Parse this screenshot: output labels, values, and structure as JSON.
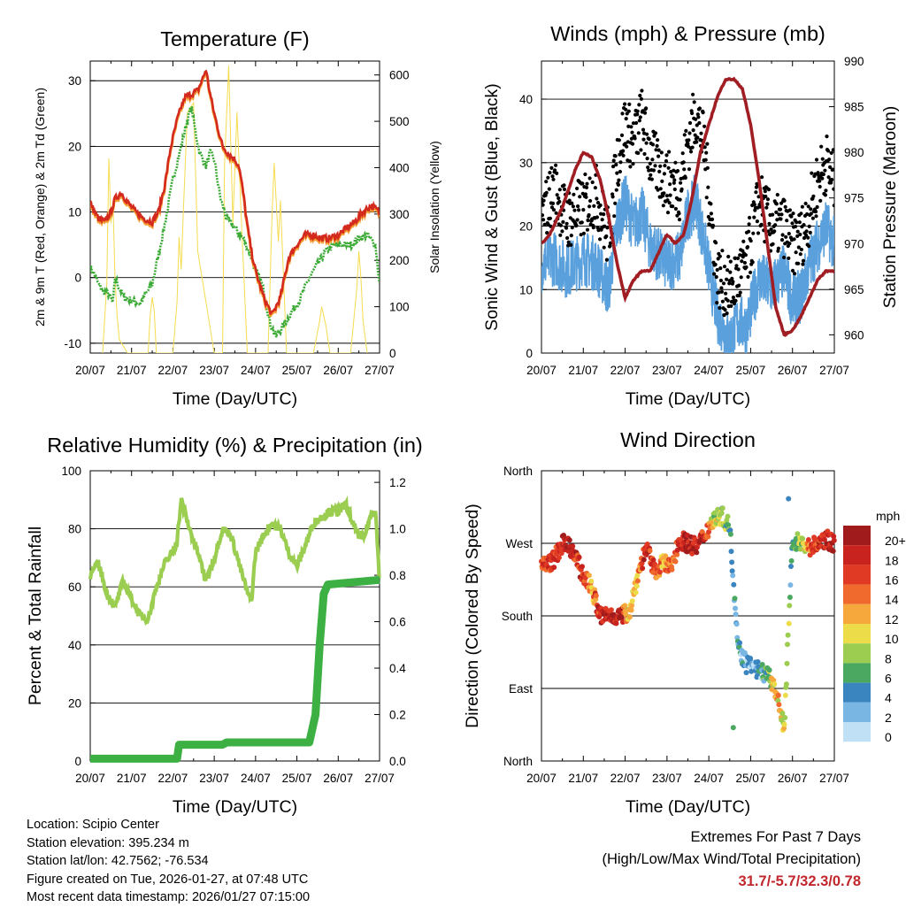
{
  "footer": {
    "location": "Location: Scipio Center",
    "elevation": "Station elevation: 395.234 m",
    "latlon": "Station lat/lon: 42.7562; -76.534",
    "created": "Figure created on Tue, 2026-01-27, at 07:48 UTC",
    "latest": "Most recent data timestamp: 2026/01/27 07:15:00"
  },
  "extremes": {
    "title": "Extremes For Past 7 Days",
    "subtitle": "(High/Low/Max Wind/Total Precipitation)",
    "values": "31.7/-5.7/32.3/0.78"
  },
  "colors": {
    "temp_2m": "#d42a1e",
    "temp_9m": "#f5a033",
    "dewpoint": "#3aaa35",
    "solar": "#f5dc50",
    "wind": "#5aa0dc",
    "gust": "#000000",
    "pressure": "#a01e23",
    "rh": "#9acd50",
    "precip": "#3cb043"
  },
  "chart_data": [
    {
      "type": "line",
      "title": "Temperature (F)",
      "xlabel": "Time (Day/UTC)",
      "ylabel": "2m & 9m T (Red, Orange) & 2m Td (Green)",
      "y2label": "Solar Insolation (Yellow)",
      "x_ticks": [
        "20/07",
        "21/07",
        "22/07",
        "23/07",
        "24/07",
        "25/07",
        "26/07",
        "27/07"
      ],
      "ylim": [
        -11.5,
        33
      ],
      "y_ticks": [
        -10,
        0,
        10,
        20,
        30
      ],
      "y2lim": [
        0,
        630
      ],
      "y2_ticks": [
        0,
        100,
        200,
        300,
        400,
        500,
        600
      ],
      "series": [
        {
          "name": "2m T",
          "color": "#d42a1e",
          "x": [
            0,
            0.1,
            0.2,
            0.35,
            0.5,
            0.6,
            0.75,
            0.9,
            1.1,
            1.3,
            1.5,
            1.65,
            1.8,
            1.95,
            2.1,
            2.2,
            2.3,
            2.45,
            2.6,
            2.7,
            2.8,
            2.9,
            3.0,
            3.2,
            3.4,
            3.5,
            3.6,
            3.7,
            3.8,
            3.9,
            4.0,
            4.1,
            4.2,
            4.4,
            4.6,
            4.8,
            5.0,
            5.2,
            5.4,
            5.6,
            5.8,
            6.0,
            6.2,
            6.4,
            6.6,
            6.8,
            7.0
          ],
          "y": [
            11.5,
            10,
            9,
            8.5,
            10,
            12,
            13,
            11.5,
            10,
            9,
            8.5,
            10,
            14,
            20,
            24,
            26,
            27.5,
            28,
            28.5,
            30,
            31.7,
            28,
            25,
            20,
            18.5,
            18,
            17,
            13,
            8,
            4,
            1,
            -1,
            -3,
            -5.7,
            -3,
            3,
            5,
            6.5,
            6.5,
            6,
            6,
            6.5,
            7.5,
            8.5,
            10,
            11,
            10
          ]
        },
        {
          "name": "2m Td",
          "color": "#3aaa35",
          "x": [
            0,
            0.1,
            0.2,
            0.3,
            0.45,
            0.55,
            0.6,
            0.8,
            1.0,
            1.2,
            1.4,
            1.5,
            1.6,
            1.8,
            2.0,
            2.2,
            2.35,
            2.45,
            2.55,
            2.65,
            2.8,
            2.9,
            3.0,
            3.15,
            3.3,
            3.45,
            3.55,
            3.7,
            3.85,
            4.0,
            4.1,
            4.2,
            4.35,
            4.5,
            4.7,
            4.9,
            5.1,
            5.3,
            5.5,
            5.7,
            5.9,
            6.1,
            6.3,
            6.5,
            6.7,
            6.9,
            7.0
          ],
          "y": [
            1.5,
            0.5,
            -1,
            -2,
            -2.5,
            -4,
            0,
            -3,
            -3.5,
            -4,
            -2,
            -1,
            2,
            8,
            15,
            20,
            24,
            26,
            22,
            19,
            17,
            19,
            18,
            12,
            9,
            8,
            7,
            6,
            4,
            1,
            0,
            -2,
            -7,
            -9,
            -7,
            -5,
            -3,
            0,
            2,
            4,
            5,
            5,
            5,
            6,
            6.5,
            5,
            -1
          ]
        },
        {
          "name": "Solar",
          "axis": "y2",
          "color": "#f5dc50",
          "x": [
            0.3,
            0.4,
            0.45,
            0.5,
            0.55,
            0.6,
            0.65,
            0.7,
            0.9,
            1.4,
            1.45,
            1.5,
            1.55,
            1.6,
            2.0,
            2.1,
            2.15,
            2.2,
            2.25,
            2.35,
            2.5,
            2.6,
            3.0,
            3.2,
            3.25,
            3.35,
            3.45,
            3.55,
            3.6,
            3.65,
            3.8,
            4.3,
            4.4,
            4.45,
            4.55,
            4.6,
            4.7,
            4.75,
            4.9,
            5.4,
            5.55,
            5.6,
            5.7,
            5.8,
            6.3,
            6.45,
            6.5,
            6.55,
            6.6,
            6.7
          ],
          "y": [
            0,
            150,
            420,
            280,
            330,
            160,
            80,
            30,
            0,
            0,
            80,
            120,
            90,
            0,
            0,
            110,
            250,
            180,
            300,
            520,
            540,
            220,
            0,
            0,
            410,
            620,
            280,
            520,
            410,
            300,
            0,
            0,
            300,
            410,
            240,
            330,
            110,
            0,
            0,
            0,
            70,
            100,
            60,
            0,
            0,
            140,
            220,
            160,
            70,
            0
          ]
        }
      ]
    },
    {
      "type": "scatter",
      "title": "Winds (mph) & Pressure (mb)",
      "xlabel": "Time (Day/UTC)",
      "ylabel": "Sonic Wind & Gust (Blue, Black)",
      "y2label": "Station Pressure (Maroon)",
      "x_ticks": [
        "20/07",
        "21/07",
        "22/07",
        "23/07",
        "24/07",
        "25/07",
        "26/07",
        "27/07"
      ],
      "ylim": [
        0,
        46
      ],
      "y_ticks": [
        0,
        10,
        20,
        30,
        40
      ],
      "y2lim": [
        958,
        990
      ],
      "y2_ticks": [
        960,
        965,
        970,
        975,
        980,
        985,
        990
      ],
      "series": [
        {
          "name": "Gust",
          "color": "#000000",
          "x": [
            0,
            0.3,
            0.6,
            1.0,
            1.3,
            1.6,
            1.8,
            2.0,
            2.2,
            2.4,
            2.6,
            3.0,
            3.3,
            3.5,
            3.7,
            3.9,
            4.2,
            4.5,
            4.7,
            4.9,
            5.2,
            5.5,
            5.8,
            6.0,
            6.2,
            6.4,
            6.6,
            6.8,
            7.0
          ],
          "y": [
            21,
            26,
            21,
            23,
            25,
            18,
            30,
            36,
            33,
            37,
            31,
            27,
            26,
            33,
            38,
            32,
            12,
            10,
            12,
            14,
            24,
            20,
            20,
            17,
            18,
            22,
            27,
            30,
            27
          ]
        },
        {
          "name": "Wind",
          "color": "#5aa0dc",
          "x": [
            0,
            0.3,
            0.6,
            1.0,
            1.3,
            1.6,
            1.8,
            2.0,
            2.2,
            2.4,
            2.6,
            3.0,
            3.3,
            3.5,
            3.7,
            3.9,
            4.2,
            4.5,
            4.7,
            4.9,
            5.2,
            5.5,
            5.8,
            6.0,
            6.2,
            6.4,
            6.6,
            6.8,
            7.0
          ],
          "y": [
            14,
            15,
            13,
            15,
            14,
            10,
            20,
            24,
            20,
            22,
            17,
            14,
            15,
            22,
            24,
            17,
            6,
            2,
            5,
            4,
            12,
            10,
            13,
            8,
            9,
            14,
            17,
            20,
            17
          ]
        },
        {
          "name": "Pressure",
          "axis": "y2",
          "color": "#a01e23",
          "x": [
            0,
            0.2,
            0.5,
            0.8,
            1.0,
            1.2,
            1.4,
            1.6,
            1.8,
            2.0,
            2.2,
            2.4,
            2.6,
            2.8,
            3.0,
            3.2,
            3.4,
            3.6,
            3.8,
            4.0,
            4.2,
            4.4,
            4.6,
            4.8,
            5.0,
            5.2,
            5.4,
            5.6,
            5.8,
            6.0,
            6.2,
            6.4,
            6.6,
            6.8,
            7.0
          ],
          "y": [
            970,
            971,
            974,
            978,
            980,
            979.5,
            977,
            973,
            968,
            964,
            966,
            967,
            967,
            969,
            971,
            970,
            971,
            975,
            980,
            983,
            986,
            988,
            988,
            987,
            983,
            977,
            970,
            963,
            960,
            960.5,
            962,
            964,
            966,
            967,
            967
          ]
        }
      ]
    },
    {
      "type": "line",
      "title": "Relative Humidity (%) & Precipitation (in)",
      "xlabel": "Time (Day/UTC)",
      "ylabel": "Percent & Total Rainfall",
      "x_ticks": [
        "20/07",
        "21/07",
        "22/07",
        "23/07",
        "24/07",
        "25/07",
        "26/07",
        "27/07"
      ],
      "ylim": [
        0,
        100
      ],
      "y_ticks": [
        0,
        20,
        40,
        60,
        80,
        100
      ],
      "y2lim": [
        0,
        1.25
      ],
      "y2_ticks": [
        "0.0",
        "0.2",
        "0.4",
        "0.6",
        "0.8",
        "1.0",
        "1.2"
      ],
      "series": [
        {
          "name": "RH",
          "color": "#9acd50",
          "x": [
            0,
            0.2,
            0.4,
            0.6,
            0.8,
            1.0,
            1.2,
            1.4,
            1.6,
            1.8,
            2.0,
            2.1,
            2.2,
            2.4,
            2.6,
            2.8,
            3.0,
            3.2,
            3.4,
            3.6,
            3.8,
            3.9,
            4.0,
            4.2,
            4.4,
            4.6,
            4.8,
            5.0,
            5.2,
            5.4,
            5.6,
            5.8,
            6.0,
            6.2,
            6.4,
            6.6,
            6.8,
            6.9,
            7.0
          ],
          "y": [
            64,
            68,
            58,
            53,
            62,
            56,
            50,
            49,
            60,
            68,
            72,
            76,
            90,
            80,
            72,
            62,
            70,
            80,
            78,
            68,
            58,
            55,
            72,
            78,
            82,
            80,
            72,
            67,
            74,
            82,
            84,
            86,
            86,
            88,
            80,
            76,
            85,
            87,
            62
          ]
        },
        {
          "name": "Precip",
          "axis": "y2",
          "color": "#3cb043",
          "x": [
            0,
            2.1,
            2.15,
            3.2,
            3.3,
            5.3,
            5.45,
            5.55,
            5.65,
            5.75,
            7.0
          ],
          "y": [
            0.01,
            0.01,
            0.07,
            0.07,
            0.08,
            0.08,
            0.2,
            0.5,
            0.72,
            0.76,
            0.78
          ]
        }
      ]
    },
    {
      "type": "scatter",
      "title": "Wind Direction",
      "xlabel": "Time (Day/UTC)",
      "ylabel": "Direction (Colored By Speed)",
      "x_ticks": [
        "20/07",
        "21/07",
        "22/07",
        "23/07",
        "24/07",
        "25/07",
        "26/07",
        "27/07"
      ],
      "ylim": [
        0,
        360
      ],
      "y_ticks": [
        {
          "v": 0,
          "label": "North"
        },
        {
          "v": 90,
          "label": "East"
        },
        {
          "v": 180,
          "label": "South"
        },
        {
          "v": 270,
          "label": "West"
        },
        {
          "v": 360,
          "label": "North"
        }
      ],
      "legend": {
        "title": "mph",
        "labels": [
          "20+",
          "18",
          "16",
          "14",
          "12",
          "10",
          "8",
          "6",
          "4",
          "2",
          "0"
        ],
        "colors": [
          "#a01c1c",
          "#c8231f",
          "#e03a25",
          "#ef6a2c",
          "#f6a83c",
          "#eddc4a",
          "#9ccc50",
          "#4aa860",
          "#3a85c0",
          "#7ab6e4",
          "#bfe0f5"
        ]
      },
      "series": [
        {
          "name": "Direction",
          "x": [
            0,
            0.3,
            0.5,
            0.7,
            1.0,
            1.2,
            1.4,
            1.6,
            1.9,
            2.1,
            2.3,
            2.5,
            2.7,
            2.9,
            3.1,
            3.3,
            3.5,
            3.7,
            3.9,
            4.1,
            4.3,
            4.5,
            4.7,
            4.9,
            5.1,
            5.3,
            5.5,
            5.6,
            5.8,
            6.0,
            6.2,
            6.4,
            6.6,
            6.8,
            7.0
          ],
          "y": [
            240,
            250,
            270,
            265,
            230,
            215,
            180,
            180,
            180,
            185,
            230,
            265,
            235,
            245,
            240,
            275,
            270,
            265,
            280,
            300,
            305,
            290,
            140,
            120,
            115,
            110,
            100,
            85,
            40,
            275,
            270,
            265,
            270,
            275,
            270
          ],
          "speed": [
            16,
            16,
            18,
            18,
            16,
            12,
            18,
            18,
            18,
            10,
            12,
            18,
            16,
            12,
            14,
            18,
            18,
            18,
            16,
            10,
            8,
            6,
            4,
            3,
            2,
            4,
            10,
            12,
            10,
            4,
            8,
            14,
            16,
            18,
            18
          ]
        }
      ]
    }
  ]
}
